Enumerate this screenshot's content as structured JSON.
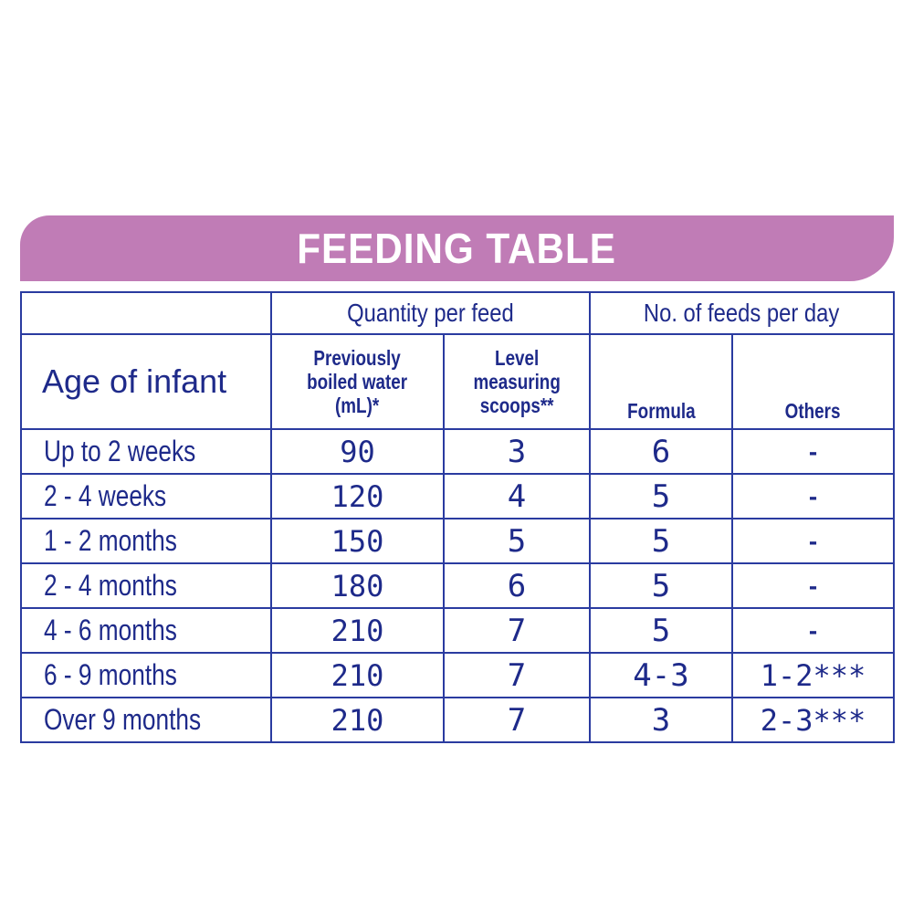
{
  "title": "FEEDING TABLE",
  "group_headers": {
    "quantity": "Quantity per feed",
    "feeds": "No. of feeds per day"
  },
  "column_headers": {
    "age": "Age of infant",
    "water": [
      "Previously",
      "boiled water",
      "(mL)*"
    ],
    "scoops": [
      "Level",
      "measuring",
      "scoops**"
    ],
    "formula": "Formula",
    "others": "Others"
  },
  "rows": [
    {
      "age": "Up to 2 weeks",
      "water": "90",
      "scoops": "3",
      "formula": "6",
      "others": "-"
    },
    {
      "age": "2 - 4 weeks",
      "water": "120",
      "scoops": "4",
      "formula": "5",
      "others": "-"
    },
    {
      "age": "1 - 2 months",
      "water": "150",
      "scoops": "5",
      "formula": "5",
      "others": "-"
    },
    {
      "age": "2 - 4 months",
      "water": "180",
      "scoops": "6",
      "formula": "5",
      "others": "-"
    },
    {
      "age": "4 - 6 months",
      "water": "210",
      "scoops": "7",
      "formula": "5",
      "others": "-"
    },
    {
      "age": "6 - 9 months",
      "water": "210",
      "scoops": "7",
      "formula": "4-3",
      "others": "1-2***"
    },
    {
      "age": "Over 9 months",
      "water": "210",
      "scoops": "7",
      "formula": "3",
      "others": "2-3***"
    }
  ],
  "colors": {
    "banner": "#c07cb6",
    "text": "#1e2a8a",
    "border": "#2a3ba0"
  }
}
